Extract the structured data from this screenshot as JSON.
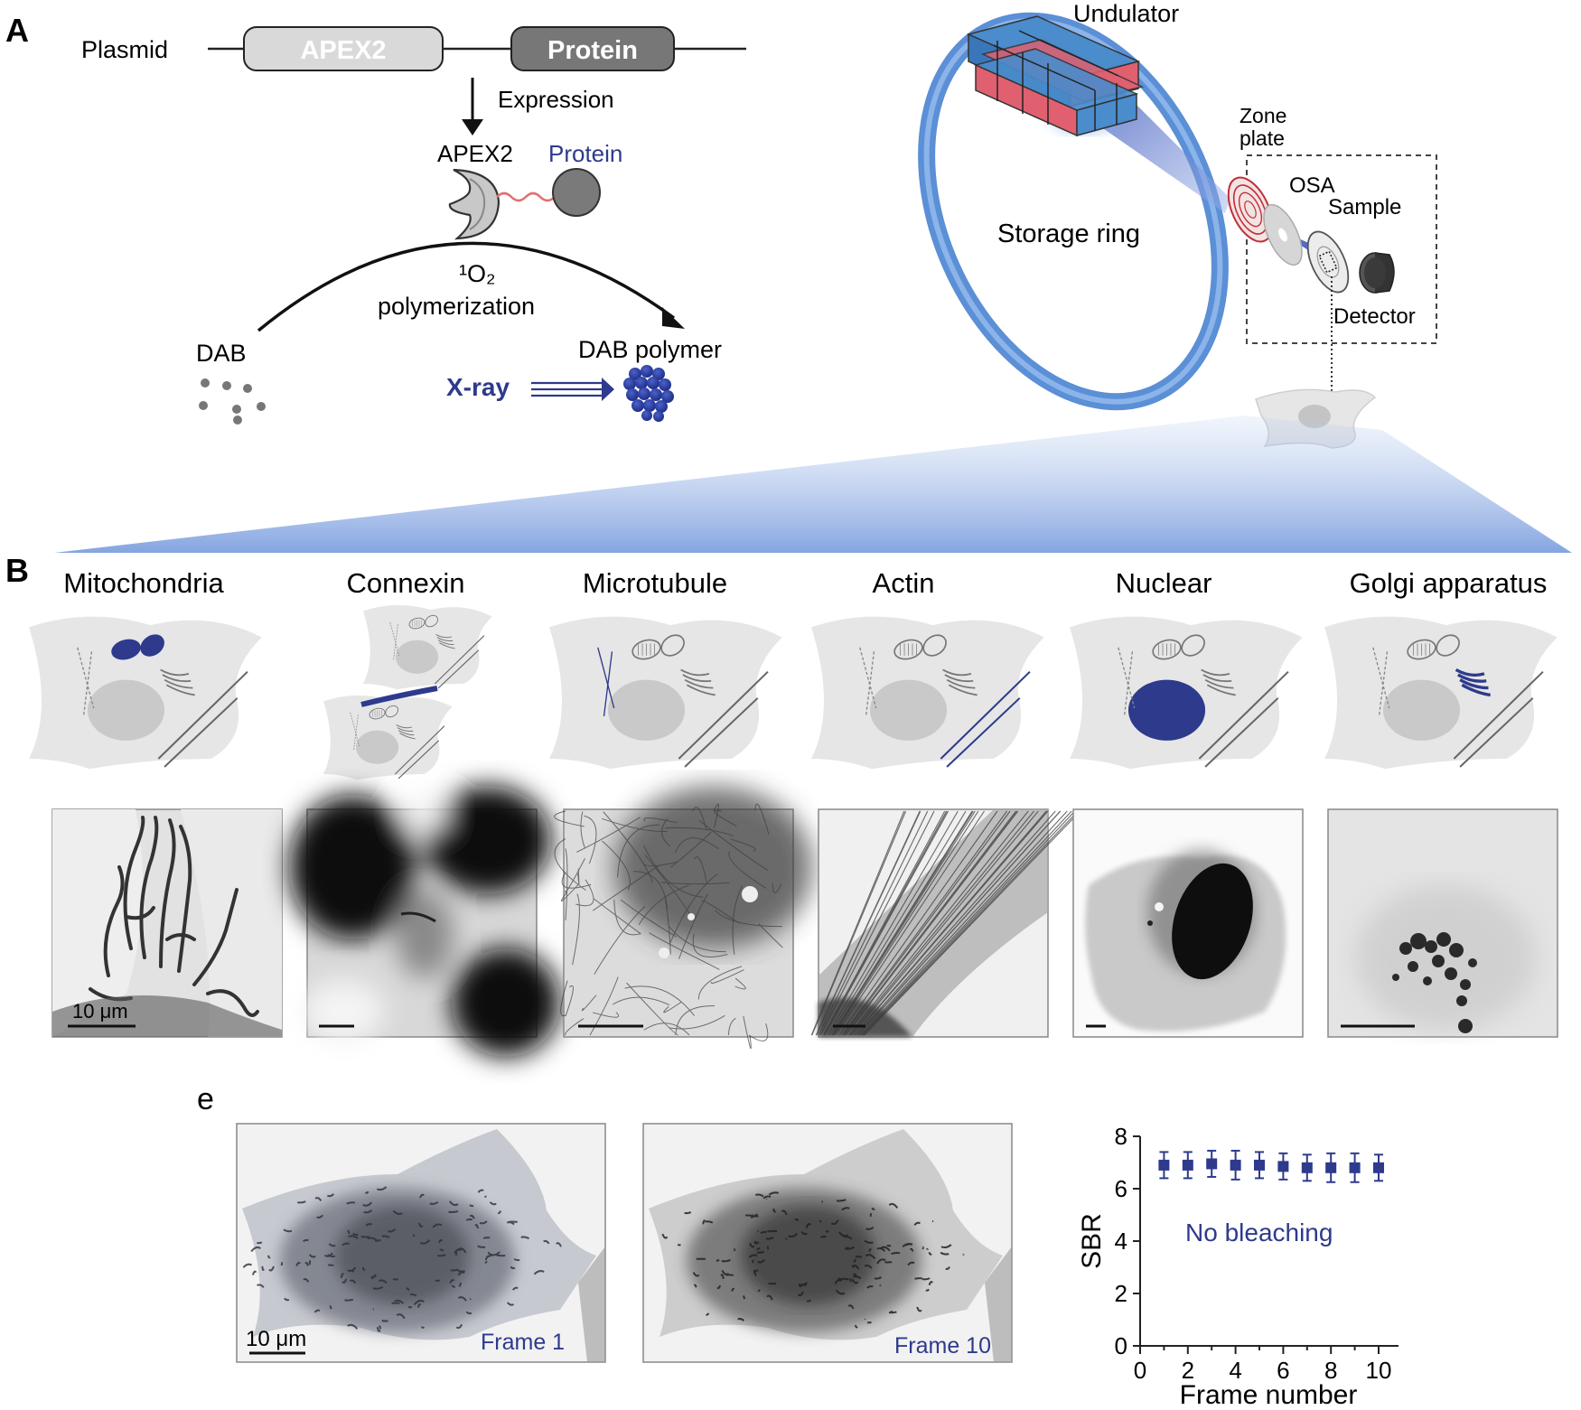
{
  "panel_a": {
    "letter": "A",
    "plasmid_label": "Plasmid",
    "apex2_box": "APEX2",
    "protein_box": "Protein",
    "expression": "Expression",
    "apex2_label": "APEX2",
    "protein_label": "Protein",
    "singlet_oxygen": "¹O₂",
    "polymerization": "polymerization",
    "dab": "DAB",
    "dab_polymer": "DAB polymer",
    "xray": "X-ray",
    "undulator": "Undulator",
    "storage_ring": "Storage ring",
    "zone_plate_1": "Zone",
    "zone_plate_2": "plate",
    "osa": "OSA",
    "sample": "Sample",
    "detector": "Detector"
  },
  "panel_b": {
    "letter": "B",
    "columns": [
      {
        "title": "Mitochondria",
        "scalebar": "10 μm"
      },
      {
        "title": "Connexin",
        "scalebar": ""
      },
      {
        "title": "Microtubule",
        "scalebar": ""
      },
      {
        "title": "Actin",
        "scalebar": ""
      },
      {
        "title": "Nuclear",
        "scalebar": ""
      },
      {
        "title": "Golgi apparatus",
        "scalebar": ""
      }
    ]
  },
  "panel_e": {
    "letter": "e",
    "frame1_scalebar": "10 μm",
    "frame1_label": "Frame 1",
    "frame10_label": "Frame 10"
  },
  "colors": {
    "accent_blue": "#2e3a8c",
    "ring_blue": "#5b8fd6",
    "magnet_red": "#e06070",
    "magnet_blue": "#4a8ccc",
    "cell_gray": "#e6e6e6"
  },
  "chart_data": {
    "type": "scatter",
    "xlabel": "Frame number",
    "ylabel": "SBR",
    "annotation": "No bleaching",
    "xlim": [
      0,
      10
    ],
    "ylim": [
      0,
      8
    ],
    "xticks": [
      0,
      2,
      4,
      6,
      8,
      10
    ],
    "yticks": [
      0,
      2,
      4,
      6,
      8
    ],
    "x": [
      1,
      2,
      3,
      4,
      5,
      6,
      7,
      8,
      9,
      10
    ],
    "y": [
      6.9,
      6.9,
      6.95,
      6.9,
      6.9,
      6.85,
      6.8,
      6.8,
      6.8,
      6.8
    ],
    "error": [
      0.5,
      0.5,
      0.5,
      0.55,
      0.5,
      0.5,
      0.5,
      0.55,
      0.55,
      0.5
    ],
    "marker": "square",
    "color": "#2e3a8c",
    "grid": false
  }
}
